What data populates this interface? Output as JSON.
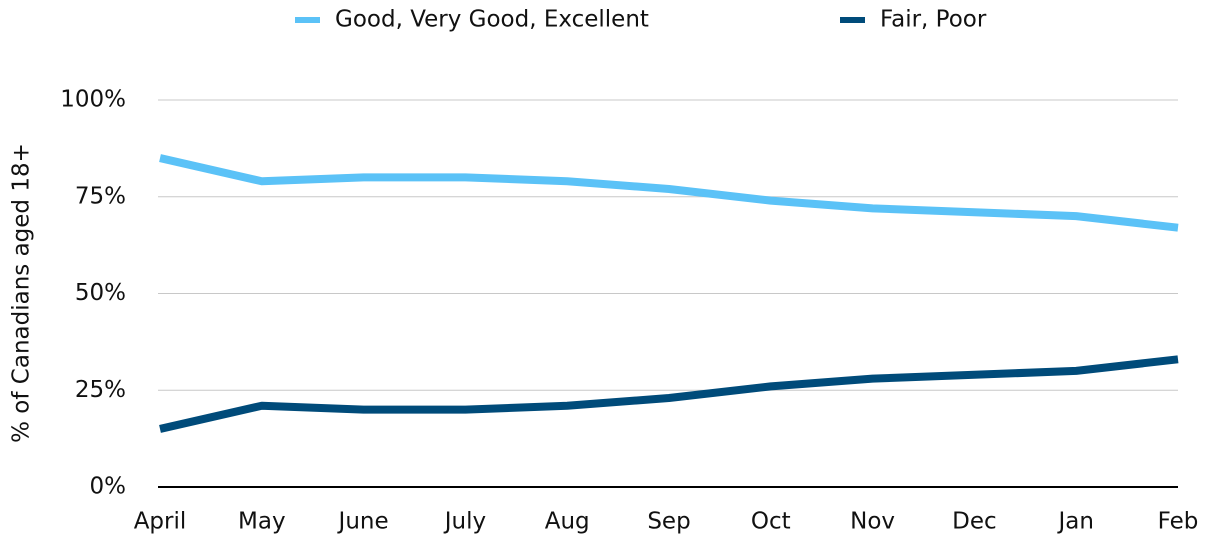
{
  "chart_data": {
    "type": "line",
    "y_label": "% of Canadians aged 18+",
    "categories": [
      "April",
      "May",
      "June",
      "July",
      "Aug",
      "Sep",
      "Oct",
      "Nov",
      "Dec",
      "Jan",
      "Feb"
    ],
    "series": [
      {
        "name": "Good, Very Good, Excellent",
        "color": "#5bc2f7",
        "values": [
          85,
          79,
          80,
          80,
          79,
          77,
          74,
          72,
          71,
          70,
          67
        ]
      },
      {
        "name": "Fair, Poor",
        "color": "#004b7a",
        "values": [
          15,
          21,
          20,
          20,
          21,
          23,
          26,
          28,
          29,
          30,
          33
        ]
      }
    ],
    "ylim": [
      0,
      100
    ],
    "yticks": [
      {
        "value": 0,
        "label": "0%"
      },
      {
        "value": 25,
        "label": "25%"
      },
      {
        "value": 50,
        "label": "50%"
      },
      {
        "value": 75,
        "label": "75%"
      },
      {
        "value": 100,
        "label": "100%"
      }
    ],
    "grid": true,
    "legend": "top"
  }
}
